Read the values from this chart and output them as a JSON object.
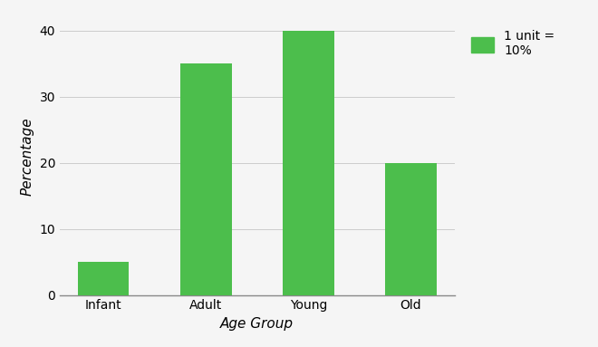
{
  "categories": [
    "Infant",
    "Adult",
    "Young",
    "Old"
  ],
  "values": [
    5,
    35,
    40,
    20
  ],
  "bar_color": "#4cbe4c",
  "xlabel": "Age Group",
  "ylabel": "Percentage",
  "ylim": [
    0,
    42
  ],
  "yticks": [
    0,
    10,
    20,
    30,
    40
  ],
  "legend_label": "1 unit =\n10%",
  "background_color": "#f5f5f5",
  "grid_color": "#cccccc",
  "bar_width": 0.5
}
